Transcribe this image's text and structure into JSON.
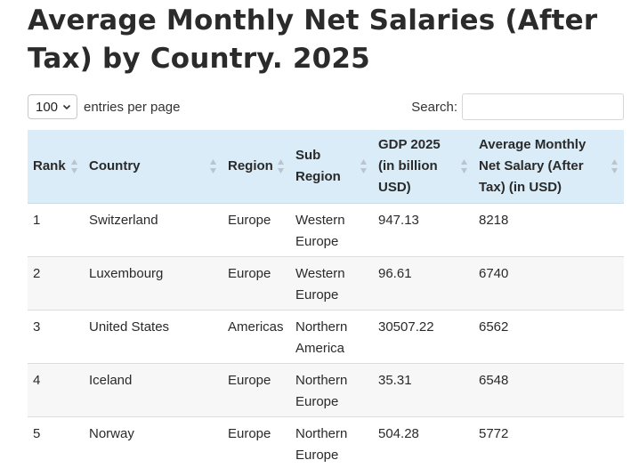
{
  "page": {
    "title": "Average Monthly Net Salaries (After Tax) by Country. 2025"
  },
  "controls": {
    "length_value": "100",
    "length_suffix": "entries per page",
    "search_label": "Search:",
    "search_value": ""
  },
  "table": {
    "headers": {
      "rank": "Rank",
      "country": "Country",
      "region": "Region",
      "sub_region": "Sub Region",
      "gdp": "GDP 2025 (in billion USD)",
      "salary": "Average Monthly Net Salary (After Tax) (in USD)"
    },
    "rows": [
      {
        "rank": "1",
        "country": "Switzerland",
        "region": "Europe",
        "sub_region": "Western Europe",
        "gdp": "947.13",
        "salary": "8218"
      },
      {
        "rank": "2",
        "country": "Luxembourg",
        "region": "Europe",
        "sub_region": "Western Europe",
        "gdp": "96.61",
        "salary": "6740"
      },
      {
        "rank": "3",
        "country": "United States",
        "region": "Americas",
        "sub_region": "Northern America",
        "gdp": "30507.22",
        "salary": "6562"
      },
      {
        "rank": "4",
        "country": "Iceland",
        "region": "Europe",
        "sub_region": "Northern Europe",
        "gdp": "35.31",
        "salary": "6548"
      },
      {
        "rank": "5",
        "country": "Norway",
        "region": "Europe",
        "sub_region": "Northern Europe",
        "gdp": "504.28",
        "salary": "5772"
      }
    ]
  },
  "icons": {
    "sort": "sort-both-icon",
    "select_chevron": "chevron-down-icon"
  },
  "colors": {
    "header_bg": "#d9ecf7",
    "title": "#2b2b2b",
    "stripe": "#f7f7f7"
  }
}
